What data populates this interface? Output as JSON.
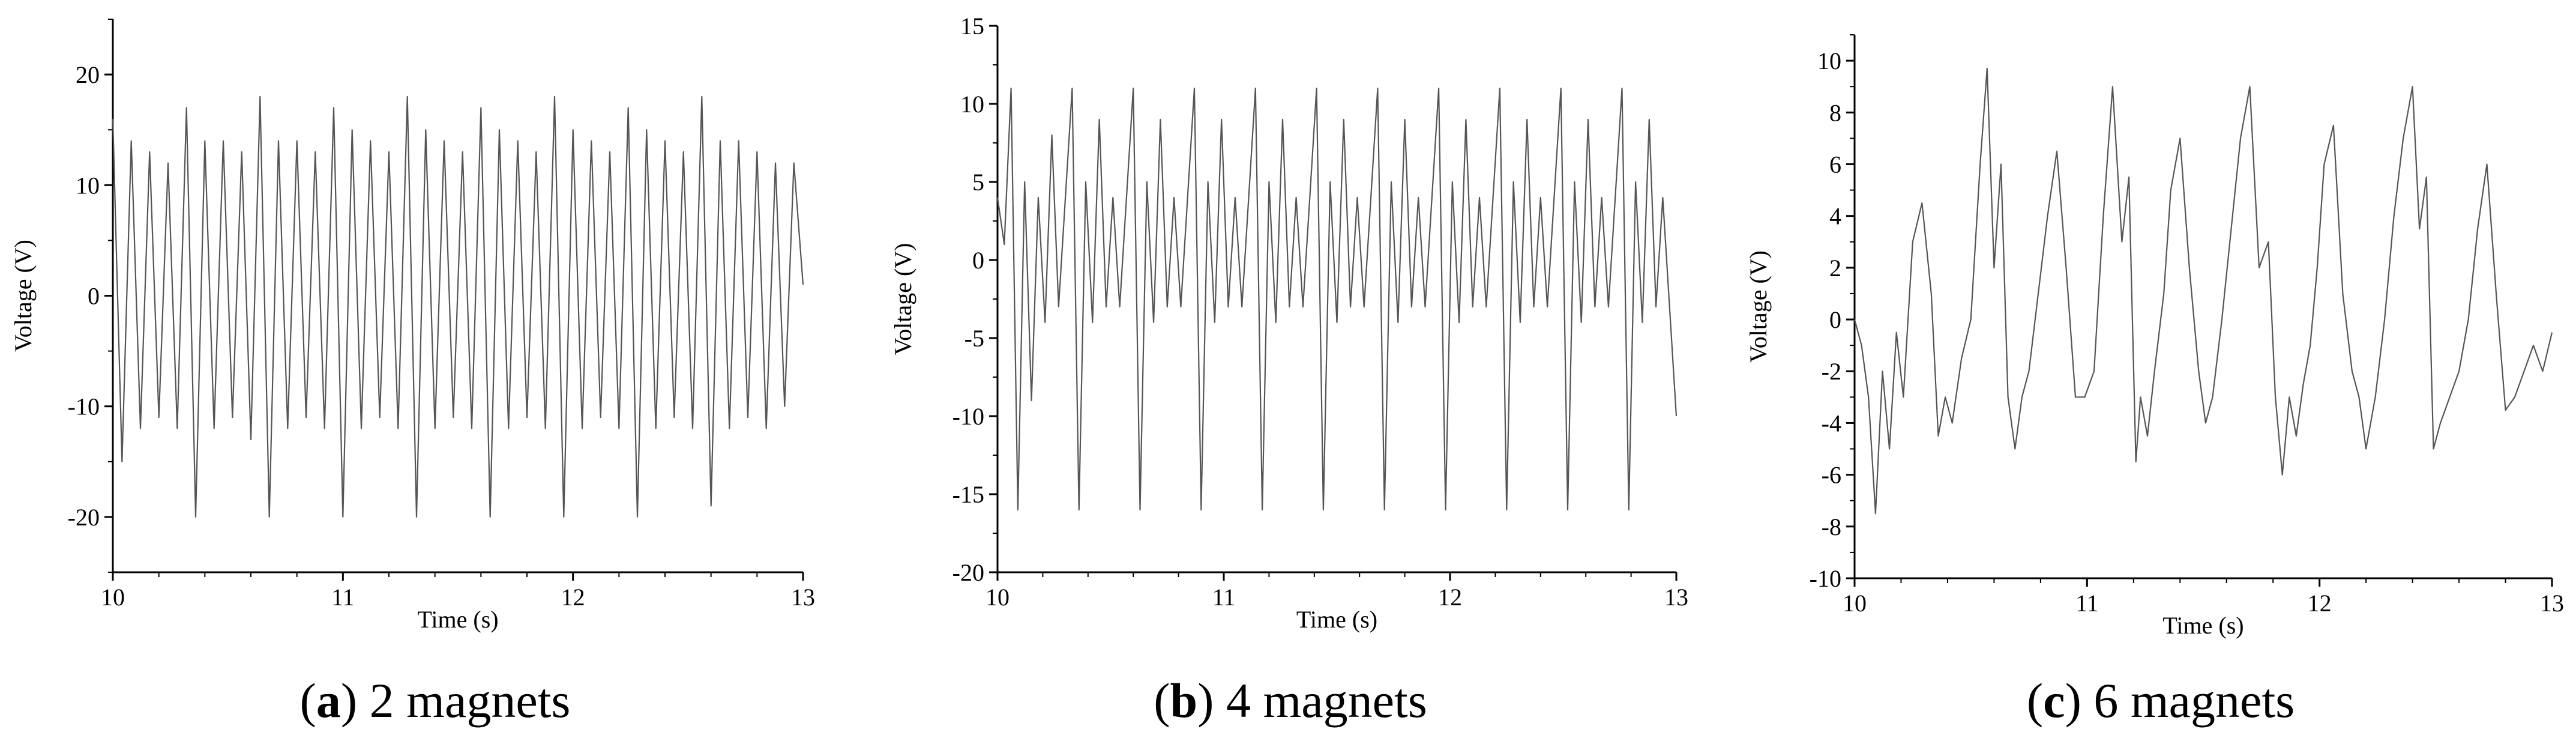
{
  "chart_data": [
    {
      "type": "line",
      "caption_letter": "a",
      "caption_text": "2 magnets",
      "xlabel": "Time (s)",
      "ylabel": "Voltage (V)",
      "xlim": [
        10,
        13
      ],
      "ylim": [
        -25,
        25
      ],
      "xticks": [
        10,
        11,
        12,
        13
      ],
      "yticks": [
        -20,
        -10,
        0,
        10,
        20
      ],
      "series": [
        {
          "x": [
            10.0,
            10.04,
            10.08,
            10.12,
            10.16,
            10.2,
            10.24,
            10.28,
            10.32,
            10.36,
            10.4,
            10.44,
            10.48,
            10.52,
            10.56,
            10.6,
            10.64,
            10.68,
            10.72,
            10.76,
            10.8,
            10.84,
            10.88,
            10.92,
            10.96,
            11.0,
            11.04,
            11.08,
            11.12,
            11.16,
            11.2,
            11.24,
            11.28,
            11.32,
            11.36,
            11.4,
            11.44,
            11.48,
            11.52,
            11.56,
            11.6,
            11.64,
            11.68,
            11.72,
            11.76,
            11.8,
            11.84,
            11.88,
            11.92,
            11.96,
            12.0,
            12.04,
            12.08,
            12.12,
            12.16,
            12.2,
            12.24,
            12.28,
            12.32,
            12.36,
            12.4,
            12.44,
            12.48,
            12.52,
            12.56,
            12.6,
            12.64,
            12.68,
            12.72,
            12.76,
            12.8,
            12.84,
            12.88,
            12.92,
            12.96,
            13.0
          ],
          "y": [
            16,
            -15,
            14,
            -12,
            13,
            -11,
            12,
            -12,
            17,
            -20,
            14,
            -12,
            14,
            -11,
            13,
            -13,
            18,
            -20,
            14,
            -12,
            14,
            -11,
            13,
            -12,
            17,
            -20,
            15,
            -12,
            14,
            -11,
            13,
            -12,
            18,
            -20,
            15,
            -12,
            14,
            -11,
            13,
            -12,
            17,
            -20,
            15,
            -12,
            14,
            -11,
            13,
            -12,
            18,
            -20,
            15,
            -12,
            14,
            -11,
            13,
            -12,
            17,
            -20,
            15,
            -12,
            14,
            -11,
            13,
            -12,
            18,
            -19,
            14,
            -12,
            14,
            -11,
            13,
            -12,
            12,
            -10,
            12,
            1
          ]
        }
      ]
    },
    {
      "type": "line",
      "caption_letter": "b",
      "caption_text": "4 magnets",
      "xlabel": "Time (s)",
      "ylabel": "Voltage (V)",
      "xlim": [
        10,
        13
      ],
      "ylim": [
        -20,
        15
      ],
      "xticks": [
        10,
        11,
        12,
        13
      ],
      "yticks": [
        -20,
        -15,
        -10,
        -5,
        0,
        5,
        10,
        15
      ],
      "series": [
        {
          "x": [
            10.0,
            10.03,
            10.06,
            10.09,
            10.12,
            10.15,
            10.18,
            10.21,
            10.24,
            10.27,
            10.3,
            10.33,
            10.36,
            10.39,
            10.42,
            10.45,
            10.48,
            10.51,
            10.54,
            10.57,
            10.6,
            10.63,
            10.66,
            10.69,
            10.72,
            10.75,
            10.78,
            10.81,
            10.84,
            10.87,
            10.9,
            10.93,
            10.96,
            10.99,
            11.02,
            11.05,
            11.08,
            11.11,
            11.14,
            11.17,
            11.2,
            11.23,
            11.26,
            11.29,
            11.32,
            11.35,
            11.38,
            11.41,
            11.44,
            11.47,
            11.5,
            11.53,
            11.56,
            11.59,
            11.62,
            11.65,
            11.68,
            11.71,
            11.74,
            11.77,
            11.8,
            11.83,
            11.86,
            11.89,
            11.92,
            11.95,
            11.98,
            12.01,
            12.04,
            12.07,
            12.1,
            12.13,
            12.16,
            12.19,
            12.22,
            12.25,
            12.28,
            12.31,
            12.34,
            12.37,
            12.4,
            12.43,
            12.46,
            12.49,
            12.52,
            12.55,
            12.58,
            12.61,
            12.64,
            12.67,
            12.7,
            12.73,
            12.76,
            12.79,
            12.82,
            12.85,
            12.88,
            12.91,
            12.94,
            12.97,
            13.0
          ],
          "y": [
            4,
            1,
            11,
            -16,
            5,
            -9,
            4,
            -4,
            8,
            -3,
            4,
            11,
            -16,
            5,
            -4,
            9,
            -3,
            4,
            -3,
            4,
            11,
            -16,
            5,
            -4,
            9,
            -3,
            4,
            -3,
            4,
            11,
            -16,
            5,
            -4,
            9,
            -3,
            4,
            -3,
            4,
            11,
            -16,
            5,
            -4,
            9,
            -3,
            4,
            -3,
            4,
            11,
            -16,
            5,
            -4,
            9,
            -3,
            4,
            -3,
            4,
            11,
            -16,
            5,
            -4,
            9,
            -3,
            4,
            -3,
            4,
            11,
            -16,
            5,
            -4,
            9,
            -3,
            4,
            -3,
            4,
            11,
            -16,
            5,
            -4,
            9,
            -3,
            4,
            -3,
            4,
            11,
            -16,
            5,
            -4,
            9,
            -3,
            4,
            -3,
            4,
            11,
            -16,
            5,
            -4,
            9,
            -3,
            4,
            -3,
            -10
          ]
        }
      ]
    },
    {
      "type": "line",
      "caption_letter": "c",
      "caption_text": "6 magnets",
      "xlabel": "Time (s)",
      "ylabel": "Voltage (V)",
      "xlim": [
        10,
        13
      ],
      "ylim": [
        -10,
        11
      ],
      "xticks": [
        10,
        11,
        12,
        13
      ],
      "yticks": [
        -10,
        -8,
        -6,
        -4,
        -2,
        0,
        2,
        4,
        6,
        8,
        10
      ],
      "series": [
        {
          "x": [
            10.0,
            10.03,
            10.06,
            10.09,
            10.12,
            10.15,
            10.18,
            10.21,
            10.25,
            10.29,
            10.33,
            10.36,
            10.39,
            10.42,
            10.46,
            10.5,
            10.54,
            10.57,
            10.6,
            10.63,
            10.66,
            10.69,
            10.72,
            10.75,
            10.79,
            10.83,
            10.87,
            10.91,
            10.95,
            10.99,
            11.03,
            11.07,
            11.11,
            11.15,
            11.18,
            11.21,
            11.23,
            11.26,
            11.29,
            11.33,
            11.36,
            11.4,
            11.44,
            11.48,
            11.51,
            11.54,
            11.58,
            11.62,
            11.66,
            11.7,
            11.74,
            11.78,
            11.81,
            11.84,
            11.87,
            11.9,
            11.93,
            11.96,
            11.99,
            12.02,
            12.06,
            12.1,
            12.14,
            12.17,
            12.2,
            12.24,
            12.28,
            12.32,
            12.36,
            12.4,
            12.43,
            12.46,
            12.49,
            12.52,
            12.56,
            12.6,
            12.64,
            12.68,
            12.72,
            12.76,
            12.8,
            12.84,
            12.88,
            12.92,
            12.96,
            13.0
          ],
          "y": [
            0,
            -1,
            -3,
            -7.5,
            -2,
            -5,
            -0.5,
            -3,
            3,
            4.5,
            1,
            -4.5,
            -3,
            -4,
            -1.5,
            0,
            6,
            9.7,
            2,
            6,
            -3,
            -5,
            -3,
            -2,
            1,
            4,
            6.5,
            2,
            -3,
            -3,
            -2,
            4,
            9,
            3,
            5.5,
            -5.5,
            -3,
            -4.5,
            -2,
            1,
            5,
            7,
            2,
            -2,
            -4,
            -3,
            0,
            3.5,
            7,
            9,
            2,
            3,
            -3,
            -6,
            -3,
            -4.5,
            -2.5,
            -1,
            2,
            6,
            7.5,
            1,
            -2,
            -3,
            -5,
            -3,
            0,
            4,
            7,
            9,
            3.5,
            5.5,
            -5,
            -4,
            -3,
            -2,
            0,
            3.5,
            6,
            1,
            -3.5,
            -3,
            -2,
            -1,
            -2,
            -0.5
          ]
        }
      ]
    }
  ]
}
